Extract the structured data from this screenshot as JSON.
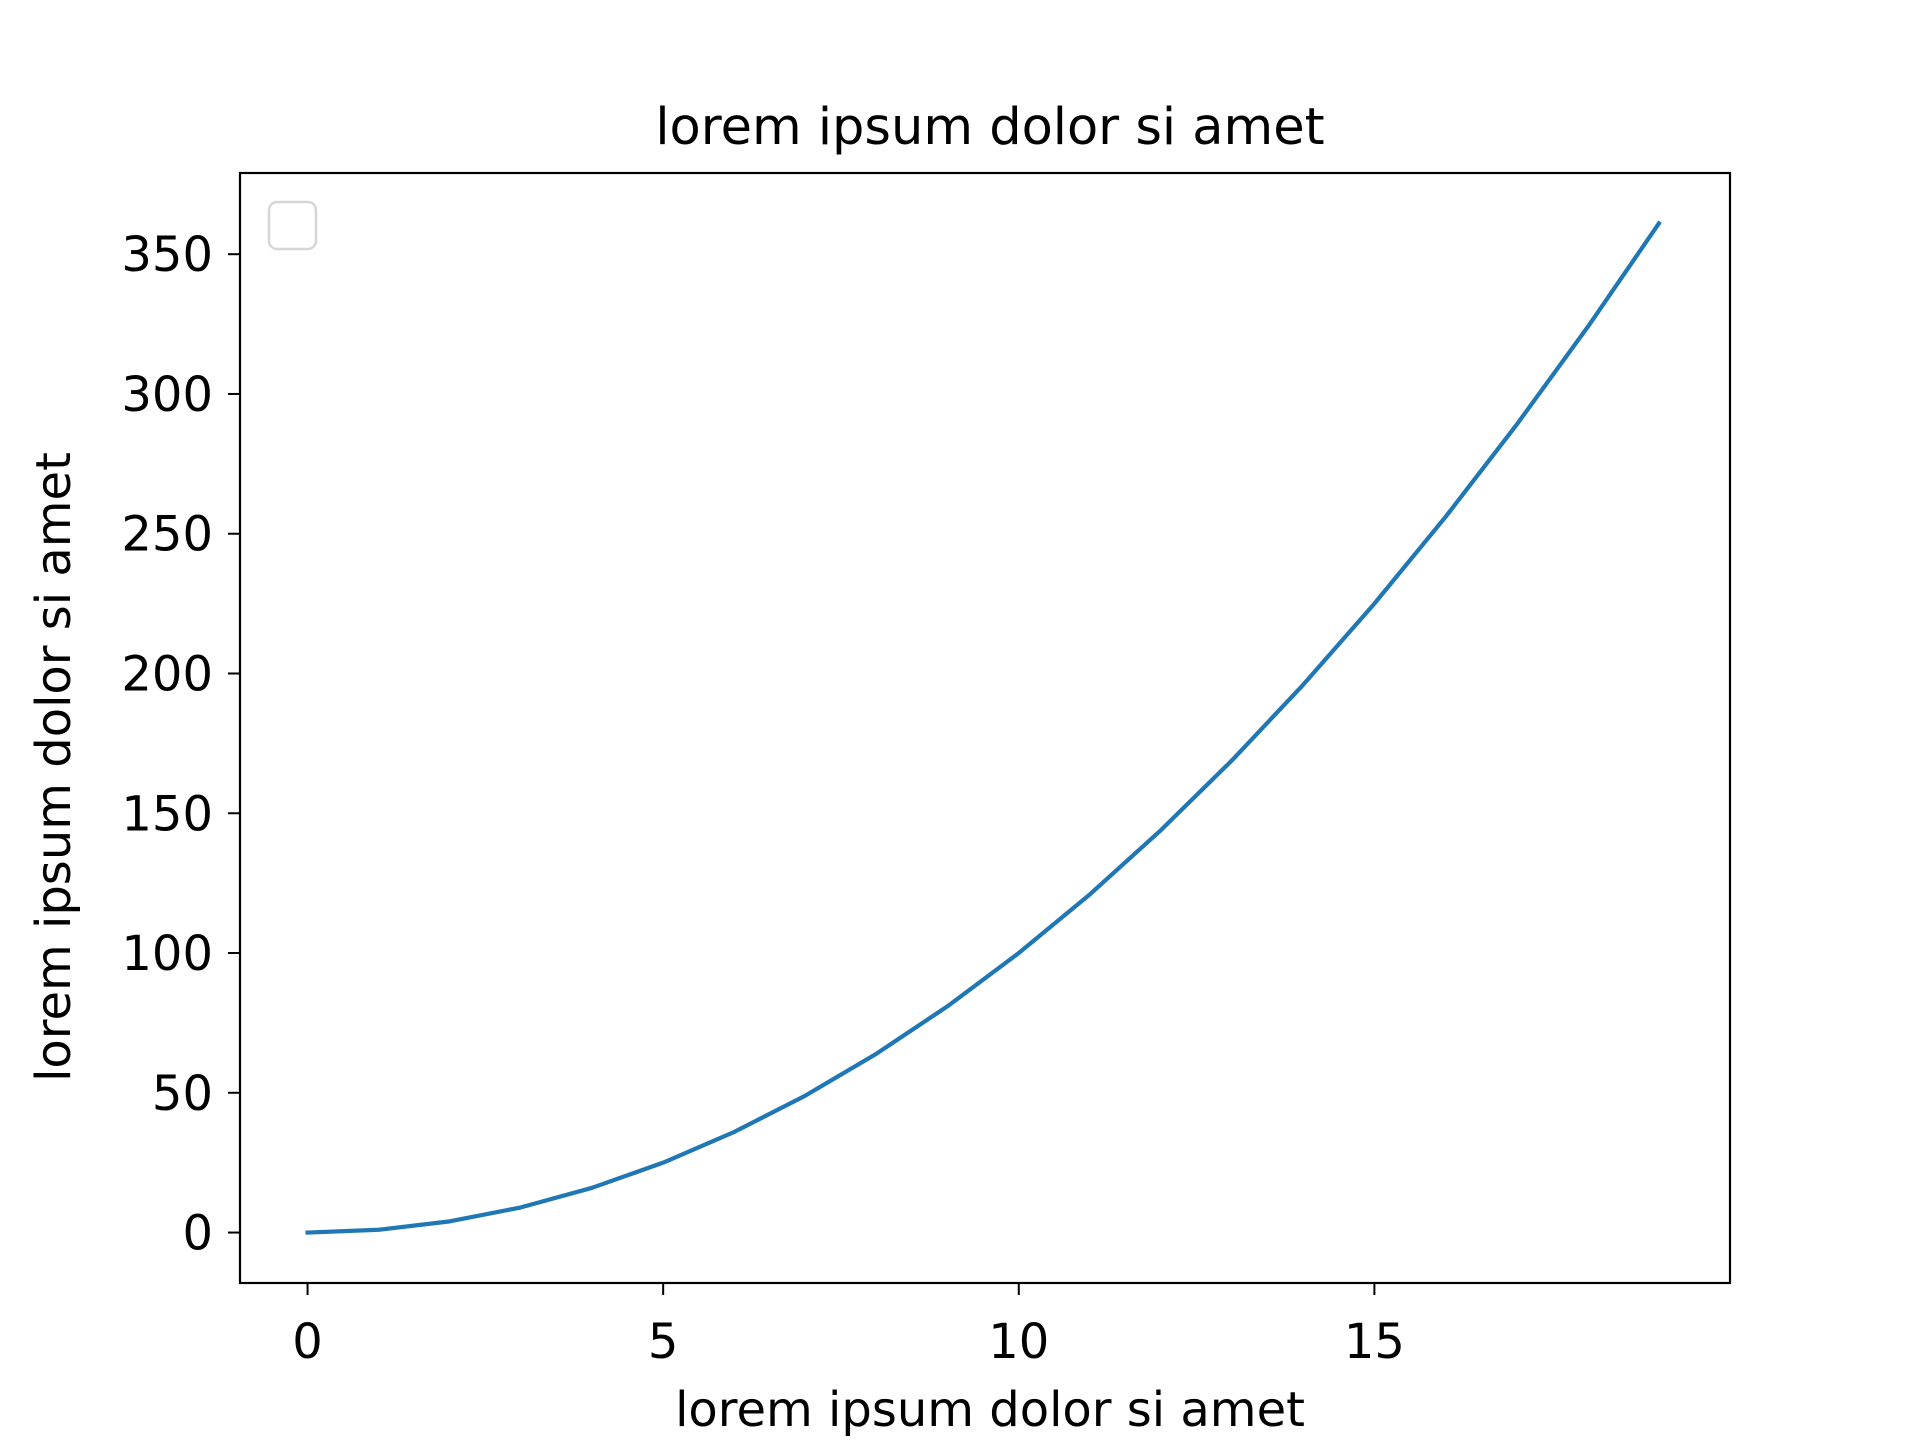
{
  "chart_data": {
    "type": "line",
    "title": "lorem ipsum dolor si amet",
    "xlabel": "lorem ipsum dolor si amet",
    "ylabel": "lorem ipsum dolor si amet",
    "xlim": [
      -0.95,
      20.0
    ],
    "ylim": [
      -18.05,
      379.05
    ],
    "x_ticks": [
      0,
      5,
      10,
      15
    ],
    "y_ticks": [
      0,
      50,
      100,
      150,
      200,
      250,
      300,
      350
    ],
    "grid": false,
    "legend": {
      "placement": "upper-left",
      "entries": []
    },
    "series": [
      {
        "color": "#1f77b4",
        "x": [
          0,
          1,
          2,
          3,
          4,
          5,
          6,
          7,
          8,
          9,
          10,
          11,
          12,
          13,
          14,
          15,
          16,
          17,
          18,
          19
        ],
        "values": [
          0,
          1,
          4,
          9,
          16,
          25,
          36,
          49,
          64,
          81,
          100,
          121,
          144,
          169,
          196,
          225,
          256,
          289,
          324,
          361
        ]
      }
    ]
  }
}
